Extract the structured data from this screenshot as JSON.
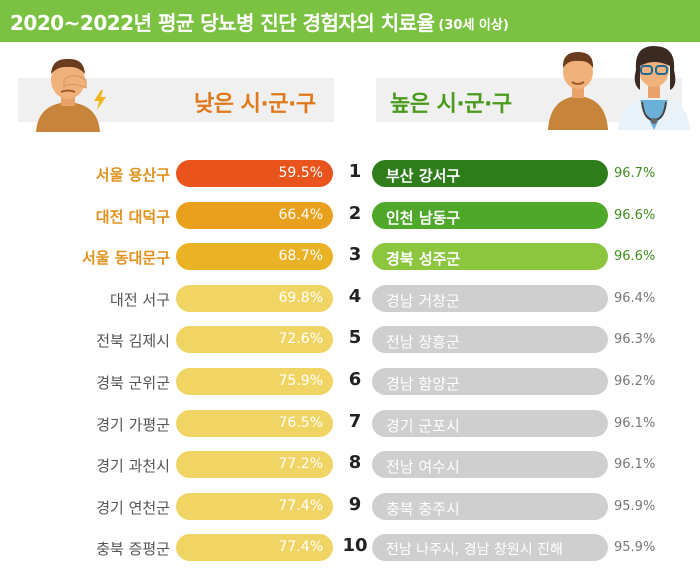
{
  "header": {
    "title": "2020~2022년 평균 당뇨병 진단 경험자의 치료율",
    "subtitle": "(30세 이상)"
  },
  "banners": {
    "low_label": "낮은 시·군·구",
    "high_label": "높은 시·군·구"
  },
  "colors": {
    "header_green": "#7cc242",
    "low_rank1": "#e8541c",
    "low_rank2": "#e9a11d",
    "low_rank3": "#eab225",
    "low_rest": "#f0d564",
    "high_rank1": "#2e7d1a",
    "high_rank2": "#4fa82a",
    "high_rank3": "#8cc63f",
    "high_rest": "#cfcfcf"
  },
  "chart_data": {
    "type": "table",
    "ranks": [
      "1",
      "2",
      "3",
      "4",
      "5",
      "6",
      "7",
      "8",
      "9",
      "10"
    ],
    "low": {
      "names": [
        "서울 용산구",
        "대전 대덕구",
        "서울 동대문구",
        "대전 서구",
        "전북 김제시",
        "경북 군위군",
        "경기 가평군",
        "경기 과천시",
        "경기 연천군",
        "충북 증평군"
      ],
      "values": [
        59.5,
        66.4,
        68.7,
        69.8,
        72.6,
        75.9,
        76.5,
        77.2,
        77.4,
        77.4
      ],
      "labels": [
        "59.5%",
        "66.4%",
        "68.7%",
        "69.8%",
        "72.6%",
        "75.9%",
        "76.5%",
        "77.2%",
        "77.4%",
        "77.4%"
      ]
    },
    "high": {
      "names": [
        "부산 강서구",
        "인천 남동구",
        "경북 성주군",
        "경남 거창군",
        "전남 장흥군",
        "경남 함양군",
        "경기 군포시",
        "전남 여수시",
        "충북 충주시",
        "전남 나주시, 경남 창원시 진해"
      ],
      "values": [
        96.7,
        96.6,
        96.6,
        96.4,
        96.3,
        96.2,
        96.1,
        96.1,
        95.9,
        95.9
      ],
      "labels": [
        "96.7%",
        "96.6%",
        "96.6%",
        "96.4%",
        "96.3%",
        "96.2%",
        "96.1%",
        "96.1%",
        "95.9%",
        "95.9%"
      ]
    }
  }
}
